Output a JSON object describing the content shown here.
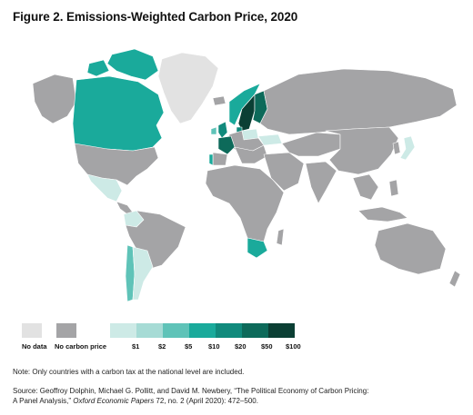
{
  "title": "Figure 2. Emissions-Weighted Carbon Price, 2020",
  "colors": {
    "no_data": "#e2e2e2",
    "no_carbon_price": "#a4a4a6",
    "p1": "#cdeae6",
    "p2": "#a6dbd5",
    "p5": "#5fc3b8",
    "p10": "#1aaa9b",
    "p20": "#118a7c",
    "p50": "#0d6a5a",
    "p100": "#0b3f34"
  },
  "legend": {
    "no_data": "No data",
    "no_carbon_price": "No carbon price",
    "bins": [
      "$1",
      "$2",
      "$5",
      "$10",
      "$20",
      "$50",
      "$100"
    ]
  },
  "map_regions": [
    {
      "name": "Greenland",
      "category": "No data"
    },
    {
      "name": "Canada",
      "category": "$10"
    },
    {
      "name": "Arctic islands",
      "category": "$10"
    },
    {
      "name": "United States",
      "category": "No carbon price"
    },
    {
      "name": "Mexico",
      "category": "$1"
    },
    {
      "name": "Colombia",
      "category": "$1"
    },
    {
      "name": "Chile",
      "category": "$5"
    },
    {
      "name": "Argentina",
      "category": "$1"
    },
    {
      "name": "France",
      "category": "$50"
    },
    {
      "name": "Finland",
      "category": "$50"
    },
    {
      "name": "Sweden",
      "category": "$100"
    },
    {
      "name": "Norway",
      "category": "$10"
    },
    {
      "name": "Denmark",
      "category": "$20"
    },
    {
      "name": "United Kingdom",
      "category": "$20"
    },
    {
      "name": "Ireland",
      "category": "$5"
    },
    {
      "name": "Portugal",
      "category": "$10"
    },
    {
      "name": "Poland",
      "category": "$1"
    },
    {
      "name": "Ukraine",
      "category": "$1"
    },
    {
      "name": "Japan",
      "category": "$1"
    },
    {
      "name": "South Africa",
      "category": "$10"
    }
  ],
  "note": "Note: Only countries with a carbon tax at the national level are included.",
  "source": {
    "line1": "Source: Geoffroy Dolphin, Michael G. Pollitt, and David M. Newbery, “The Political Economy of Carbon Pricing:",
    "line2_pre": "A Panel Analysis,” ",
    "journal": "Oxford Economic Papers",
    "line2_post": " 72, no. 2 (April 2020): 472–500."
  }
}
